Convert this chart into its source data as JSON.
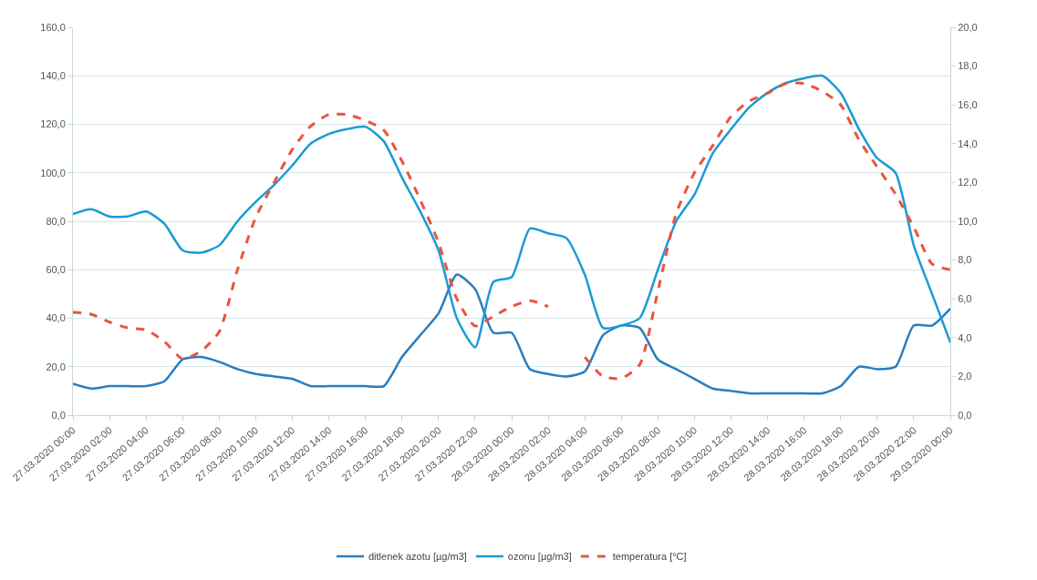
{
  "chart_data": {
    "type": "line",
    "x": [
      "2020-03-27T00:00",
      "2020-03-27T01:00",
      "2020-03-27T02:00",
      "2020-03-27T03:00",
      "2020-03-27T04:00",
      "2020-03-27T05:00",
      "2020-03-27T06:00",
      "2020-03-27T07:00",
      "2020-03-27T08:00",
      "2020-03-27T09:00",
      "2020-03-27T10:00",
      "2020-03-27T11:00",
      "2020-03-27T12:00",
      "2020-03-27T13:00",
      "2020-03-27T14:00",
      "2020-03-27T15:00",
      "2020-03-27T16:00",
      "2020-03-27T17:00",
      "2020-03-27T18:00",
      "2020-03-27T19:00",
      "2020-03-27T20:00",
      "2020-03-27T21:00",
      "2020-03-27T22:00",
      "2020-03-27T23:00",
      "2020-03-28T00:00",
      "2020-03-28T01:00",
      "2020-03-28T02:00",
      "2020-03-28T03:00",
      "2020-03-28T04:00",
      "2020-03-28T05:00",
      "2020-03-28T06:00",
      "2020-03-28T07:00",
      "2020-03-28T08:00",
      "2020-03-28T09:00",
      "2020-03-28T10:00",
      "2020-03-28T11:00",
      "2020-03-28T12:00",
      "2020-03-28T13:00",
      "2020-03-28T14:00",
      "2020-03-28T15:00",
      "2020-03-28T16:00",
      "2020-03-28T17:00",
      "2020-03-28T18:00",
      "2020-03-28T19:00",
      "2020-03-28T20:00",
      "2020-03-28T21:00",
      "2020-03-28T22:00",
      "2020-03-28T23:00",
      "2020-03-29T00:00"
    ],
    "series": [
      {
        "name": "ditlenek azotu [µg/m3]",
        "color": "#2a7dbf",
        "values": [
          13,
          11,
          12,
          12,
          12,
          14,
          23,
          24,
          22,
          19,
          17,
          16,
          15,
          12,
          12,
          12,
          12,
          12,
          24,
          33,
          42,
          58,
          52,
          34,
          34,
          19,
          17,
          16,
          18,
          33,
          37,
          36,
          23,
          19,
          15,
          11,
          10,
          9,
          9,
          9,
          9,
          9,
          12,
          20,
          19,
          20,
          37,
          37,
          44
        ]
      },
      {
        "name": "ozonu [µg/m3]",
        "color": "#1b9ad6",
        "values": [
          83,
          85,
          82,
          82,
          84,
          79,
          68,
          67,
          70,
          80,
          88,
          95,
          103,
          112,
          116,
          118,
          119,
          113,
          98,
          84,
          68,
          40,
          28,
          55,
          57,
          77,
          75,
          73,
          58,
          36,
          37,
          40,
          60,
          80,
          91,
          108,
          118,
          127,
          133,
          137,
          139,
          140,
          133,
          118,
          106,
          100,
          70,
          50,
          30
        ]
      },
      {
        "name": "temperatura [°C]",
        "color": "#e8553e",
        "axis": "y2",
        "line_style": "dashed",
        "values": [
          5.3,
          5.2,
          4.8,
          4.5,
          4.4,
          3.8,
          2.9,
          3.3,
          4.3,
          7.5,
          10.2,
          12.0,
          13.7,
          14.9,
          15.5,
          15.5,
          15.2,
          14.7,
          13.1,
          11.1,
          8.9,
          6.0,
          4.6,
          5.1,
          5.6,
          5.9,
          5.6,
          null,
          3.0,
          2.0,
          1.9,
          2.6,
          6.4,
          10.4,
          12.5,
          13.9,
          15.4,
          16.2,
          16.6,
          17.1,
          17.1,
          16.7,
          16.0,
          14.2,
          12.8,
          11.4,
          9.7,
          7.8,
          7.5
        ]
      }
    ],
    "xlim": [
      "2020-03-27T00:00",
      "2020-03-29T00:00"
    ],
    "xticks": [
      {
        "value": "2020-03-27T00:00",
        "label": "27.03.2020 00:00"
      },
      {
        "value": "2020-03-27T02:00",
        "label": "27.03.2020 02:00"
      },
      {
        "value": "2020-03-27T04:00",
        "label": "27.03.2020 04:00"
      },
      {
        "value": "2020-03-27T06:00",
        "label": "27.03.2020 06:00"
      },
      {
        "value": "2020-03-27T08:00",
        "label": "27.03.2020 08:00"
      },
      {
        "value": "2020-03-27T10:00",
        "label": "27.03.2020 10:00"
      },
      {
        "value": "2020-03-27T12:00",
        "label": "27.03.2020 12:00"
      },
      {
        "value": "2020-03-27T14:00",
        "label": "27.03.2020 14:00"
      },
      {
        "value": "2020-03-27T16:00",
        "label": "27.03.2020 16:00"
      },
      {
        "value": "2020-03-27T18:00",
        "label": "27.03.2020 18:00"
      },
      {
        "value": "2020-03-27T20:00",
        "label": "27.03.2020 20:00"
      },
      {
        "value": "2020-03-27T22:00",
        "label": "27.03.2020 22:00"
      },
      {
        "value": "2020-03-28T00:00",
        "label": "28.03.2020 00:00"
      },
      {
        "value": "2020-03-28T02:00",
        "label": "28.03.2020 02:00"
      },
      {
        "value": "2020-03-28T04:00",
        "label": "28.03.2020 04:00"
      },
      {
        "value": "2020-03-28T06:00",
        "label": "28.03.2020 06:00"
      },
      {
        "value": "2020-03-28T08:00",
        "label": "28.03.2020 08:00"
      },
      {
        "value": "2020-03-28T10:00",
        "label": "28.03.2020 10:00"
      },
      {
        "value": "2020-03-28T12:00",
        "label": "28.03.2020 12:00"
      },
      {
        "value": "2020-03-28T14:00",
        "label": "28.03.2020 14:00"
      },
      {
        "value": "2020-03-28T16:00",
        "label": "28.03.2020 16:00"
      },
      {
        "value": "2020-03-28T18:00",
        "label": "28.03.2020 18:00"
      },
      {
        "value": "2020-03-28T20:00",
        "label": "28.03.2020 20:00"
      },
      {
        "value": "2020-03-28T22:00",
        "label": "28.03.2020 22:00"
      },
      {
        "value": "2020-03-29T00:00",
        "label": "29.03.2020 00:00"
      }
    ],
    "ylim": [
      0,
      160
    ],
    "yticks": [
      {
        "value": 0,
        "label": "0,0"
      },
      {
        "value": 20,
        "label": "20,0"
      },
      {
        "value": 40,
        "label": "40,0"
      },
      {
        "value": 60,
        "label": "60,0"
      },
      {
        "value": 80,
        "label": "80,0"
      },
      {
        "value": 100,
        "label": "100,0"
      },
      {
        "value": 120,
        "label": "120,0"
      },
      {
        "value": 140,
        "label": "140,0"
      },
      {
        "value": 160,
        "label": "160,0"
      }
    ],
    "y2lim": [
      0,
      20
    ],
    "y2ticks": [
      {
        "value": 0,
        "label": "0,0"
      },
      {
        "value": 2,
        "label": "2,0"
      },
      {
        "value": 4,
        "label": "4,0"
      },
      {
        "value": 6,
        "label": "6,0"
      },
      {
        "value": 8,
        "label": "8,0"
      },
      {
        "value": 10,
        "label": "10,0"
      },
      {
        "value": 12,
        "label": "12,0"
      },
      {
        "value": 14,
        "label": "14,0"
      },
      {
        "value": 16,
        "label": "16,0"
      },
      {
        "value": 18,
        "label": "18,0"
      },
      {
        "value": 20,
        "label": "20,0"
      }
    ],
    "grid": "y",
    "legend": "bottom",
    "marker": "none"
  }
}
